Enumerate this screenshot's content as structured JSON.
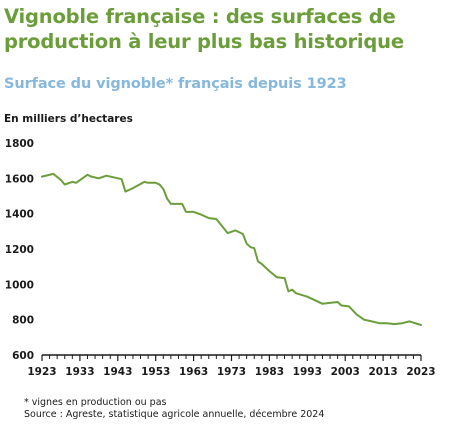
{
  "header": {
    "title": "Vignoble française : des surfaces de production à leur plus bas historique",
    "subtitle": "Surface du vignoble* français depuis 1923",
    "unit": "En milliers d’hectares"
  },
  "footer": {
    "note": "* vignes en production ou pas",
    "source": "Source : Agreste, statistique agricole annuelle, décembre 2024"
  },
  "colors": {
    "line": "#6b9e3a",
    "title": "#6b9e3a",
    "subtitle": "#86b8dd",
    "axis": "#1a1a1a"
  },
  "chart_data": {
    "type": "line",
    "title": "Surface du vignoble* français depuis 1923",
    "ylabel": "En milliers d’hectares",
    "xlabel": "",
    "xlim": [
      1923,
      2023
    ],
    "ylim": [
      600,
      1800
    ],
    "x_ticks": [
      1923,
      1933,
      1943,
      1953,
      1963,
      1973,
      1983,
      1993,
      2003,
      2013,
      2023
    ],
    "y_ticks": [
      600,
      800,
      1000,
      1200,
      1400,
      1600,
      1800
    ],
    "grid": false,
    "legend": "none",
    "series": [
      {
        "x": [
          1923,
          1926,
          1928,
          1929,
          1931,
          1932,
          1935,
          1936,
          1938,
          1940,
          1944,
          1945,
          1947,
          1950,
          1951,
          1953,
          1954,
          1955,
          1956,
          1957,
          1960,
          1961,
          1963,
          1965,
          1967,
          1969,
          1972,
          1974,
          1976,
          1977,
          1978,
          1979,
          1980,
          1981,
          1983,
          1985,
          1987,
          1988,
          1989,
          1990,
          1993,
          1995,
          1997,
          1999,
          2001,
          2002,
          2004,
          2006,
          2008,
          2010,
          2012,
          2014,
          2016,
          2018,
          2020,
          2023
        ],
        "y": [
          1610,
          1625,
          1590,
          1565,
          1580,
          1575,
          1620,
          1610,
          1600,
          1615,
          1595,
          1525,
          1545,
          1580,
          1575,
          1575,
          1565,
          1540,
          1485,
          1455,
          1455,
          1410,
          1410,
          1395,
          1375,
          1370,
          1290,
          1305,
          1285,
          1230,
          1210,
          1205,
          1130,
          1115,
          1075,
          1040,
          1035,
          960,
          970,
          950,
          930,
          910,
          890,
          895,
          900,
          880,
          875,
          830,
          800,
          790,
          780,
          780,
          775,
          780,
          790,
          770
        ]
      }
    ]
  }
}
